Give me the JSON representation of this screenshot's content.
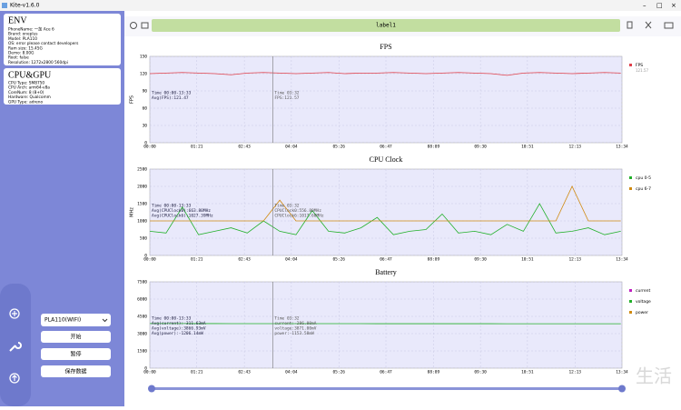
{
  "window": {
    "title": "Kite-v1.6.0"
  },
  "env": {
    "heading": "ENV",
    "lines": [
      "PhoneName: 一加 Ace 6",
      "Brand: oneplus",
      "Model: PLA110",
      "OS: error please contact developers",
      "Ram size: 15.45G",
      "Demo: 8.00G",
      "Root: false",
      "Resolution: 1272x2800 560dpi"
    ]
  },
  "cpu_gpu": {
    "heading": "CPU&GPU",
    "lines": [
      "CPU Type: SM8750",
      "CPU Arch: arm64-v8a",
      "CoreNum: 8 (8+0)",
      "Hardware: Qualcomm",
      "GPU Type: adreno"
    ]
  },
  "controls": {
    "device": "PLA110(WIFI)",
    "start": "开始",
    "pause": "暂停",
    "save": "保存数据"
  },
  "toolbar": {
    "label": "label1"
  },
  "watermark": "生活",
  "charts": [
    {
      "type": "line",
      "title": "FPS",
      "ylabel": "FPS",
      "ylim": [
        0,
        150
      ],
      "yticks": [
        0,
        30,
        60,
        90,
        120,
        150
      ],
      "xlim": [
        0,
        814
      ],
      "xticks": [
        {
          "value": 0,
          "label": "00:00"
        },
        {
          "value": 81,
          "label": "01:21"
        },
        {
          "value": 163,
          "label": "02:43"
        },
        {
          "value": 244,
          "label": "04:04"
        },
        {
          "value": 326,
          "label": "05:26"
        },
        {
          "value": 407,
          "label": "06:47"
        },
        {
          "value": 489,
          "label": "08:09"
        },
        {
          "value": 570,
          "label": "09:30"
        },
        {
          "value": 651,
          "label": "10:51"
        },
        {
          "value": 733,
          "label": "12:13"
        },
        {
          "value": 814,
          "label": "13:34"
        }
      ],
      "cursor_x": 212,
      "notes_left": [
        "Time 00:00-13:33",
        "Avg(FPS):121.47"
      ],
      "notes_right": [
        "Time 03:32",
        "FPS:121.57"
      ],
      "legend_value": "121.57",
      "x": [
        0,
        28,
        56,
        84,
        112,
        140,
        168,
        196,
        224,
        252,
        280,
        308,
        336,
        364,
        392,
        420,
        448,
        476,
        504,
        532,
        560,
        588,
        616,
        644,
        672,
        700,
        728,
        756,
        784,
        812
      ],
      "series": [
        {
          "name": "FPS",
          "color": "#e0404a",
          "values": [
            120,
            121,
            122,
            121,
            120,
            118,
            121,
            122,
            121,
            120,
            121,
            122,
            120,
            121,
            121,
            122,
            121,
            120,
            121,
            122,
            121,
            120,
            117,
            121,
            122,
            121,
            120,
            121,
            122,
            121
          ]
        }
      ]
    },
    {
      "type": "line",
      "title": "CPU Clock",
      "ylabel": "MHz",
      "ylim": [
        0,
        2500
      ],
      "yticks": [
        0,
        500,
        1000,
        1500,
        2000,
        2500
      ],
      "xlim": [
        0,
        814
      ],
      "xticks": [
        {
          "value": 0,
          "label": "00:00"
        },
        {
          "value": 81,
          "label": "01:21"
        },
        {
          "value": 163,
          "label": "02:43"
        },
        {
          "value": 244,
          "label": "04:04"
        },
        {
          "value": 326,
          "label": "05:26"
        },
        {
          "value": 407,
          "label": "06:47"
        },
        {
          "value": 489,
          "label": "08:09"
        },
        {
          "value": 570,
          "label": "09:30"
        },
        {
          "value": 651,
          "label": "10:51"
        },
        {
          "value": 733,
          "label": "12:13"
        },
        {
          "value": 814,
          "label": "13:34"
        }
      ],
      "cursor_x": 212,
      "notes_left": [
        "Time 00:00-13:33",
        "Avg(CPUClock0):663.80MHz",
        "Avg(CPUClock6):1027.39MHz"
      ],
      "notes_right": [
        "Time 03:32",
        "CPUClock0:556.80MHz",
        "CPUClock6:1017.60MHz"
      ],
      "x": [
        0,
        28,
        56,
        84,
        112,
        140,
        168,
        196,
        224,
        252,
        280,
        308,
        336,
        364,
        392,
        420,
        448,
        476,
        504,
        532,
        560,
        588,
        616,
        644,
        672,
        700,
        728,
        756,
        784,
        812
      ],
      "series": [
        {
          "name": "cpu 0-5",
          "color": "#22b02a",
          "values": [
            700,
            650,
            1400,
            600,
            700,
            800,
            650,
            1000,
            700,
            600,
            1300,
            700,
            650,
            800,
            1100,
            600,
            700,
            750,
            1200,
            650,
            700,
            600,
            900,
            700,
            1500,
            650,
            700,
            800,
            600,
            700
          ]
        },
        {
          "name": "cpu 6-7",
          "color": "#d08a10",
          "values": [
            1000,
            1000,
            1000,
            1000,
            1000,
            1000,
            1000,
            1000,
            1600,
            1000,
            1000,
            1000,
            1000,
            1000,
            1000,
            1000,
            1000,
            1000,
            1000,
            1000,
            1000,
            1000,
            1000,
            1000,
            1000,
            1000,
            2000,
            1000,
            1000,
            1000
          ]
        }
      ]
    },
    {
      "type": "line",
      "title": "Battery",
      "ylim": [
        0,
        7500
      ],
      "yticks": [
        0,
        1500,
        3000,
        4500,
        6000,
        7500
      ],
      "xlim": [
        0,
        814
      ],
      "xticks": [
        {
          "value": 0,
          "label": "00:00"
        },
        {
          "value": 81,
          "label": "01:21"
        },
        {
          "value": 163,
          "label": "02:43"
        },
        {
          "value": 244,
          "label": "04:04"
        },
        {
          "value": 326,
          "label": "05:26"
        },
        {
          "value": 407,
          "label": "06:47"
        },
        {
          "value": 489,
          "label": "08:09"
        },
        {
          "value": 570,
          "label": "09:30"
        },
        {
          "value": 651,
          "label": "10:51"
        },
        {
          "value": 733,
          "label": "12:13"
        },
        {
          "value": 814,
          "label": "13:34"
        }
      ],
      "cursor_x": 212,
      "notes_left": [
        "Time 00:00-13:33",
        "Avg(current):-311.63mA",
        "Avg(voltage):3866.93mV",
        "Avg(power):-1206.14mW"
      ],
      "notes_right": [
        "Time 03:32",
        "current:-286.00mA",
        "voltage:3871.00mV",
        "power:-1153.58mW"
      ],
      "x": [
        0,
        28,
        56,
        84,
        112,
        140,
        168,
        196,
        224,
        252,
        280,
        308,
        336,
        364,
        392,
        420,
        448,
        476,
        504,
        532,
        560,
        588,
        616,
        644,
        672,
        700,
        728,
        756,
        784,
        812
      ],
      "series": [
        {
          "name": "current",
          "color": "#c020c0"
        },
        {
          "name": "voltage",
          "color": "#22b02a",
          "values": [
            3880,
            3878,
            3876,
            3874,
            3872,
            3871,
            3870,
            3870,
            3869,
            3868,
            3868,
            3867,
            3866,
            3866,
            3865,
            3865,
            3864,
            3864,
            3863,
            3863,
            3862,
            3862,
            3861,
            3861,
            3860,
            3860,
            3859,
            3859,
            3858,
            3858
          ]
        },
        {
          "name": "power",
          "color": "#d08a10"
        }
      ]
    }
  ]
}
